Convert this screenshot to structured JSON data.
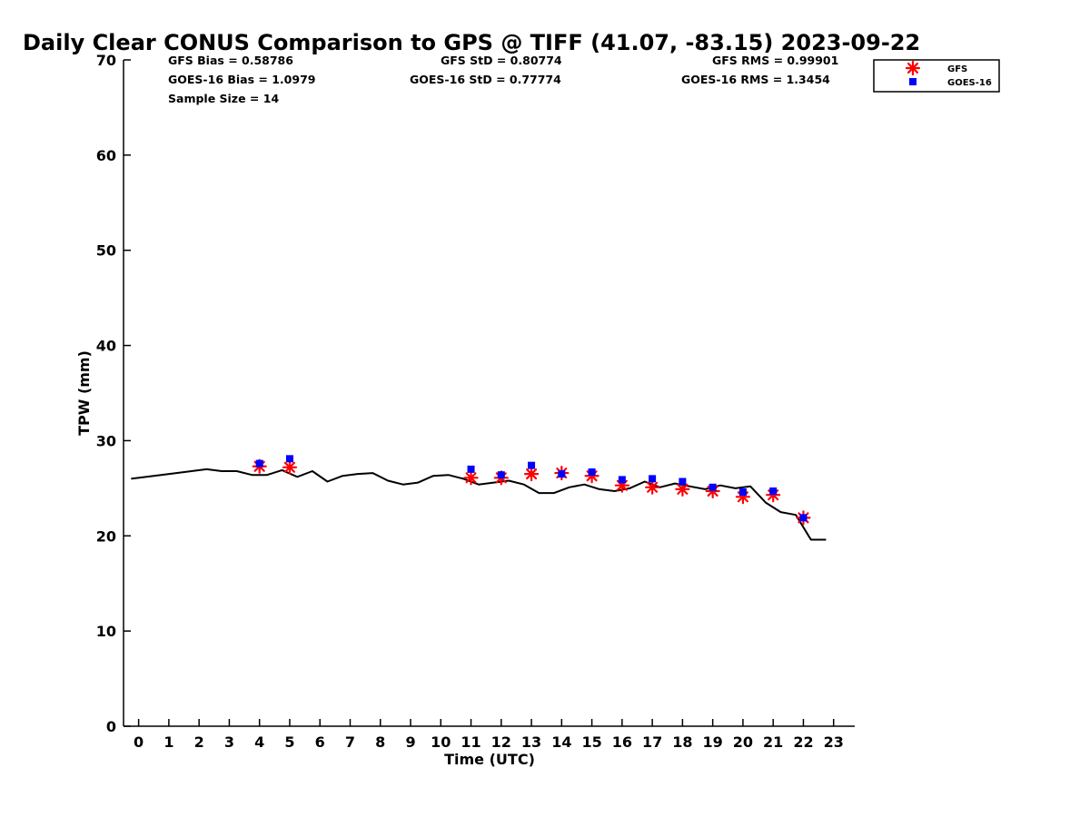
{
  "chart_data": {
    "type": "scatter",
    "title": "Daily Clear CONUS Comparison to GPS @ TIFF (41.07, -83.15) 2023-09-22",
    "xlabel": "Time (UTC)",
    "ylabel": "TPW (mm)",
    "xlim": [
      -0.5,
      23.7
    ],
    "ylim": [
      0,
      70
    ],
    "x_ticks": [
      "0",
      "1",
      "2",
      "3",
      "4",
      "5",
      "6",
      "7",
      "8",
      "9",
      "10",
      "11",
      "12",
      "13",
      "14",
      "15",
      "16",
      "17",
      "18",
      "19",
      "20",
      "21",
      "22",
      "23"
    ],
    "y_ticks": [
      "0",
      "10",
      "20",
      "30",
      "40",
      "50",
      "60",
      "70"
    ],
    "grid": false,
    "legend_position": "top-right",
    "stats": {
      "gfs_bias": "GFS Bias = 0.58786",
      "goes_bias": "GOES-16 Bias = 1.0979",
      "sample_size": "Sample Size = 14",
      "gfs_std": "GFS StD = 0.80774",
      "goes_std": "GOES-16 StD = 0.77774",
      "gfs_rms": "GFS RMS = 0.99901",
      "goes_rms": "GOES-16 RMS = 1.3454"
    },
    "series": [
      {
        "name": "GFS",
        "marker": "asterisk",
        "color": "#ff0000",
        "x": [
          4,
          5,
          11,
          12,
          13,
          14,
          15,
          16,
          17,
          18,
          19,
          20,
          21,
          22
        ],
        "y": [
          27.3,
          27.2,
          26.1,
          26.1,
          26.5,
          26.6,
          26.3,
          25.3,
          25.1,
          24.9,
          24.7,
          24.1,
          24.3,
          21.9
        ]
      },
      {
        "name": "GOES-16",
        "marker": "square",
        "color": "#0000ff",
        "x": [
          4,
          5,
          11,
          12,
          13,
          14,
          15,
          16,
          17,
          18,
          19,
          20,
          21,
          22
        ],
        "y": [
          27.6,
          28.1,
          27.0,
          26.4,
          27.4,
          26.5,
          26.7,
          25.9,
          26.0,
          25.7,
          25.1,
          24.6,
          24.7,
          21.9
        ]
      },
      {
        "marker": "line",
        "color": "#000000",
        "x": [
          -0.25,
          0.5,
          1.25,
          2.25,
          2.75,
          3.25,
          3.75,
          4.25,
          4.75,
          5.25,
          5.75,
          6.25,
          6.75,
          7.25,
          7.75,
          8.25,
          8.75,
          9.25,
          9.75,
          10.25,
          10.75,
          11.25,
          11.75,
          12.25,
          12.75,
          13.25,
          13.75,
          14.25,
          14.75,
          15.25,
          15.75,
          16.25,
          16.75,
          17.25,
          17.75,
          18.25,
          18.75,
          19.25,
          19.75,
          20.25,
          20.75,
          21.25,
          21.75,
          22.25,
          22.75
        ],
        "y": [
          26.0,
          26.3,
          26.6,
          27.0,
          26.8,
          26.8,
          26.4,
          26.4,
          26.9,
          26.2,
          26.8,
          25.7,
          26.3,
          26.5,
          26.6,
          25.8,
          25.4,
          25.6,
          26.3,
          26.4,
          26.0,
          25.4,
          25.6,
          25.8,
          25.4,
          24.5,
          24.5,
          25.1,
          25.4,
          24.9,
          24.7,
          25.0,
          25.7,
          25.1,
          25.5,
          25.2,
          24.9,
          25.3,
          25.0,
          25.2,
          23.5,
          22.5,
          22.2,
          19.6,
          19.6
        ]
      }
    ]
  }
}
